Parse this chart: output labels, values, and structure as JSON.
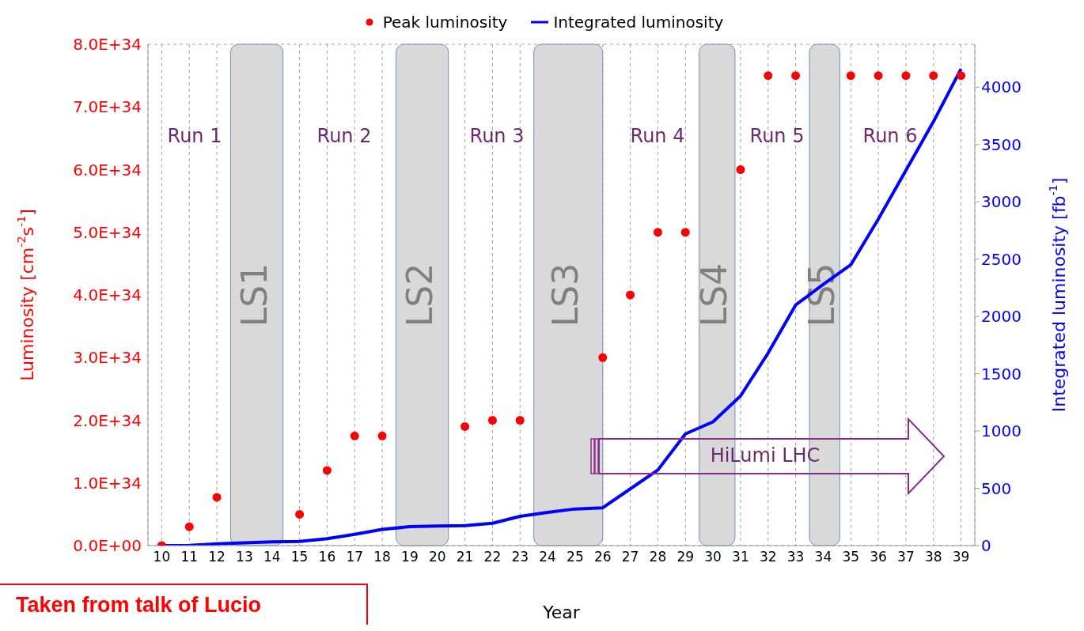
{
  "chart_data": {
    "type": "scatter",
    "xlabel": "Year",
    "ylabel": "Luminosity [cm$^{-2}$s$^{-1}$]",
    "y2label": "Integrated luminosity [fb$^{-1}$]",
    "x": [
      10,
      11,
      12,
      13,
      14,
      15,
      16,
      17,
      18,
      19,
      20,
      21,
      22,
      23,
      24,
      25,
      26,
      27,
      28,
      29,
      30,
      31,
      32,
      33,
      34,
      35,
      36,
      37,
      38,
      39
    ],
    "xlim": [
      9.5,
      39.5
    ],
    "xticks": [
      10,
      11,
      12,
      13,
      14,
      15,
      16,
      17,
      18,
      19,
      20,
      21,
      22,
      23,
      24,
      25,
      26,
      27,
      28,
      29,
      30,
      31,
      32,
      33,
      34,
      35,
      36,
      37,
      38,
      39
    ],
    "ylim": [
      0,
      8e+34
    ],
    "yticks": [
      {
        "value": 0,
        "label": "0.0E+00"
      },
      {
        "value": 1e+34,
        "label": "1.0E+34"
      },
      {
        "value": 2e+34,
        "label": "2.0E+34"
      },
      {
        "value": 3e+34,
        "label": "3.0E+34"
      },
      {
        "value": 4e+34,
        "label": "4.0E+34"
      },
      {
        "value": 5e+34,
        "label": "5.0E+34"
      },
      {
        "value": 6e+34,
        "label": "6.0E+34"
      },
      {
        "value": 7e+34,
        "label": "7.0E+34"
      },
      {
        "value": 8e+34,
        "label": "8.0E+34"
      }
    ],
    "y2lim": [
      0,
      4375
    ],
    "y2ticks": [
      0,
      500,
      1000,
      1500,
      2000,
      2500,
      3000,
      3500,
      4000
    ],
    "series": [
      {
        "name": "Peak luminosity",
        "color": "#ff0000",
        "values": [
          0,
          3e+33,
          7.7e+33,
          null,
          null,
          5e+33,
          1.2e+34,
          1.75e+34,
          1.75e+34,
          null,
          null,
          1.9e+34,
          2e+34,
          2e+34,
          null,
          null,
          3e+34,
          4e+34,
          5e+34,
          5e+34,
          null,
          6e+34,
          7.5e+34,
          7.5e+34,
          null,
          7.5e+34,
          7.5e+34,
          7.5e+34,
          7.5e+34,
          7.5e+34
        ]
      },
      {
        "name": "Integrated luminosity",
        "type": "line",
        "axis": "y2",
        "color": "#0000ff",
        "marker": "none",
        "values": [
          0,
          2,
          15,
          25,
          32,
          36,
          60,
          99,
          141,
          165,
          170,
          174,
          195,
          255,
          290,
          320,
          330,
          495,
          660,
          975,
          1080,
          1306,
          1680,
          2100,
          2280,
          2450,
          2850,
          3275,
          3700,
          4160
        ]
      }
    ],
    "bands": [
      {
        "axis": "x",
        "from": 12.5,
        "to": 14.4,
        "label": "LS1",
        "color": "#d9d9d9"
      },
      {
        "axis": "x",
        "from": 18.5,
        "to": 20.4,
        "label": "LS2",
        "color": "#d9d9d9"
      },
      {
        "axis": "x",
        "from": 23.5,
        "to": 26,
        "label": "LS3",
        "color": "#d9d9d9"
      },
      {
        "axis": "x",
        "from": 29.5,
        "to": 30.8,
        "label": "LS4",
        "color": "#d9d9d9"
      },
      {
        "axis": "x",
        "from": 33.5,
        "to": 34.6,
        "label": "LS5",
        "color": "#d9d9d9"
      }
    ],
    "annotations": [
      "Run 1",
      "Run 2",
      "Run 3",
      "Run 4",
      "Run 5",
      "Run 6",
      "HiLumi LHC",
      "Taken from talk of Lucio"
    ],
    "grid": true,
    "legend": "top",
    "marker": "circle"
  }
}
